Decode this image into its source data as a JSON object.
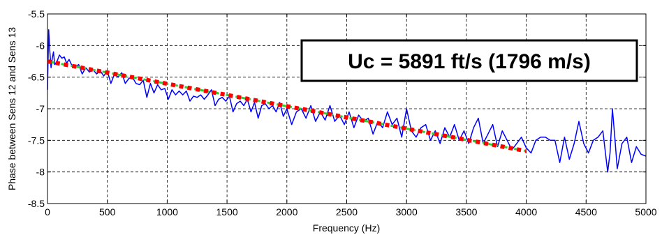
{
  "chart_data": {
    "type": "line",
    "title": "",
    "xlabel": "Frequency (Hz)",
    "ylabel": "Phase between Sens 12 and Sens 13",
    "xlim": [
      0,
      5000
    ],
    "ylim": [
      -8.5,
      -5.5
    ],
    "xticks": [
      0,
      500,
      1000,
      1500,
      2000,
      2500,
      3000,
      3500,
      4000,
      4500,
      5000
    ],
    "yticks": [
      -8.5,
      -8,
      -7.5,
      -7,
      -6.5,
      -6,
      -5.5
    ],
    "xtick_labels": [
      "0",
      "500",
      "1000",
      "1500",
      "2000",
      "2500",
      "3000",
      "3500",
      "4000",
      "4500",
      "5000"
    ],
    "ytick_labels": [
      "-8.5",
      "-8",
      "-7.5",
      "-7",
      "-6.5",
      "-6",
      "-5.5"
    ],
    "grid": true,
    "grid_style": "dashed",
    "annotation": "Uc = 5891 ft/s (1796 m/s)",
    "series": [
      {
        "color": "#0000ff",
        "style": "solid",
        "x": [
          0,
          10,
          20,
          30,
          40,
          50,
          60,
          80,
          100,
          120,
          140,
          160,
          180,
          200,
          230,
          260,
          290,
          320,
          350,
          380,
          410,
          440,
          470,
          500,
          530,
          560,
          590,
          620,
          650,
          680,
          710,
          740,
          770,
          800,
          830,
          860,
          890,
          920,
          950,
          980,
          1010,
          1040,
          1070,
          1100,
          1130,
          1160,
          1190,
          1220,
          1250,
          1280,
          1310,
          1340,
          1370,
          1400,
          1430,
          1460,
          1490,
          1520,
          1550,
          1580,
          1610,
          1640,
          1670,
          1700,
          1730,
          1760,
          1790,
          1820,
          1850,
          1880,
          1910,
          1940,
          1970,
          2000,
          2040,
          2080,
          2120,
          2160,
          2200,
          2240,
          2280,
          2320,
          2360,
          2400,
          2440,
          2480,
          2520,
          2560,
          2600,
          2640,
          2680,
          2720,
          2760,
          2800,
          2840,
          2880,
          2920,
          2960,
          3000,
          3040,
          3080,
          3120,
          3160,
          3200,
          3240,
          3280,
          3320,
          3360,
          3400,
          3440,
          3480,
          3520,
          3560,
          3600,
          3640,
          3680,
          3720,
          3760,
          3800,
          3840,
          3880,
          3920,
          3960,
          4000,
          4040,
          4080,
          4120,
          4160,
          4200,
          4240,
          4280,
          4320,
          4360,
          4400,
          4440,
          4480,
          4520,
          4560,
          4600,
          4640,
          4680,
          4700,
          4720,
          4740,
          4760,
          4800,
          4840,
          4880,
          4920,
          4960,
          5000
        ],
        "y": [
          -6.7,
          -5.75,
          -6.1,
          -6.35,
          -6.2,
          -6.1,
          -6.3,
          -6.25,
          -6.15,
          -6.2,
          -6.18,
          -6.28,
          -6.22,
          -6.3,
          -6.35,
          -6.3,
          -6.45,
          -6.35,
          -6.42,
          -6.38,
          -6.45,
          -6.4,
          -6.48,
          -6.4,
          -6.6,
          -6.45,
          -6.5,
          -6.43,
          -6.6,
          -6.52,
          -6.5,
          -6.6,
          -6.62,
          -6.55,
          -6.82,
          -6.6,
          -6.75,
          -6.62,
          -6.7,
          -6.68,
          -6.85,
          -6.7,
          -6.78,
          -6.72,
          -6.78,
          -6.72,
          -6.88,
          -6.8,
          -6.82,
          -6.78,
          -6.85,
          -6.78,
          -6.7,
          -6.95,
          -6.85,
          -6.82,
          -6.88,
          -6.8,
          -7.05,
          -6.92,
          -6.88,
          -6.95,
          -6.85,
          -7.05,
          -6.9,
          -7.15,
          -6.95,
          -6.92,
          -7.0,
          -6.95,
          -7.05,
          -6.9,
          -7.12,
          -7.0,
          -7.25,
          -7.05,
          -7.0,
          -7.15,
          -6.95,
          -7.2,
          -7.05,
          -7.18,
          -6.95,
          -7.2,
          -7.1,
          -7.25,
          -7.05,
          -7.3,
          -7.1,
          -7.2,
          -7.15,
          -7.4,
          -7.2,
          -7.3,
          -7.05,
          -7.25,
          -7.15,
          -7.45,
          -7.0,
          -7.35,
          -7.45,
          -7.3,
          -7.25,
          -7.5,
          -7.35,
          -7.55,
          -7.3,
          -7.45,
          -7.25,
          -7.5,
          -7.35,
          -7.55,
          -7.3,
          -7.15,
          -7.55,
          -7.4,
          -7.25,
          -7.6,
          -7.35,
          -7.5,
          -7.65,
          -7.55,
          -7.45,
          -7.62,
          -7.7,
          -7.5,
          -7.45,
          -7.45,
          -7.5,
          -7.5,
          -7.85,
          -7.45,
          -7.8,
          -7.55,
          -7.2,
          -7.55,
          -7.7,
          -7.5,
          -7.45,
          -7.35,
          -8.0,
          -7.7,
          -7.0,
          -7.45,
          -7.95,
          -7.55,
          -7.45,
          -7.85,
          -7.6,
          -7.72,
          -7.75
        ]
      },
      {
        "color": "#33cc33",
        "style": "dash-dot",
        "x": [
          0,
          4000
        ],
        "y": [
          -6.25,
          -7.67
        ]
      },
      {
        "color": "#ff0000",
        "style": "dotted",
        "x": [
          0,
          4000
        ],
        "y": [
          -6.25,
          -7.67
        ]
      }
    ]
  }
}
